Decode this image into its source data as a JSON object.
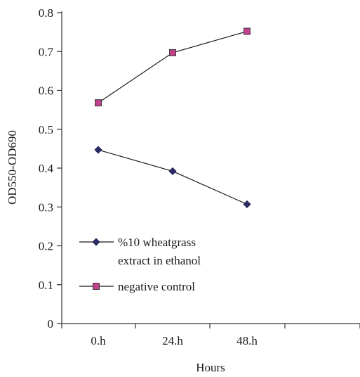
{
  "chart_data": {
    "type": "line",
    "categories": [
      "0.h",
      "24.h",
      "48.h"
    ],
    "xlabel": "Hours",
    "ylabel": "OD550-OD690",
    "ylim": [
      0,
      0.8
    ],
    "yticks": [
      "0",
      "0.1",
      "0.2",
      "0.3",
      "0.4",
      "0.5",
      "0.6",
      "0.7",
      "0.8"
    ],
    "grid": false,
    "legend_position": "bottom-left",
    "series": [
      {
        "name": "%10 wheatgrass extract in ethanol",
        "name_lines": [
          "%10 wheatgrass",
          "extract in ethanol"
        ],
        "marker": "diamond",
        "marker_color": "#2b2b6b",
        "values": [
          0.447,
          0.392,
          0.307
        ]
      },
      {
        "name": "negative control",
        "name_lines": [
          "negative control"
        ],
        "marker": "square",
        "marker_color": "#c2418f",
        "values": [
          0.568,
          0.697,
          0.752
        ]
      }
    ]
  }
}
